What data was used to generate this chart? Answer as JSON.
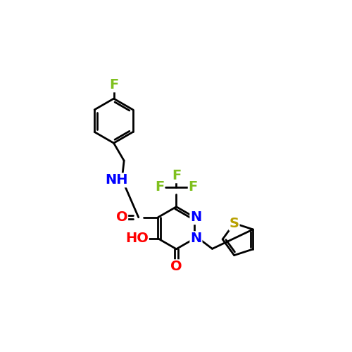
{
  "bg_color": "#ffffff",
  "bond_color": "#000000",
  "bond_width": 2.0,
  "atom_colors": {
    "F": "#7fc01e",
    "N": "#0000ff",
    "O": "#ff0000",
    "S": "#b8a000",
    "C": "#000000",
    "H": "#000000"
  },
  "font_size": 14,
  "figsize": [
    5.0,
    5.0
  ],
  "dpi": 100,
  "xlim": [
    0,
    10
  ],
  "ylim": [
    0,
    10
  ]
}
